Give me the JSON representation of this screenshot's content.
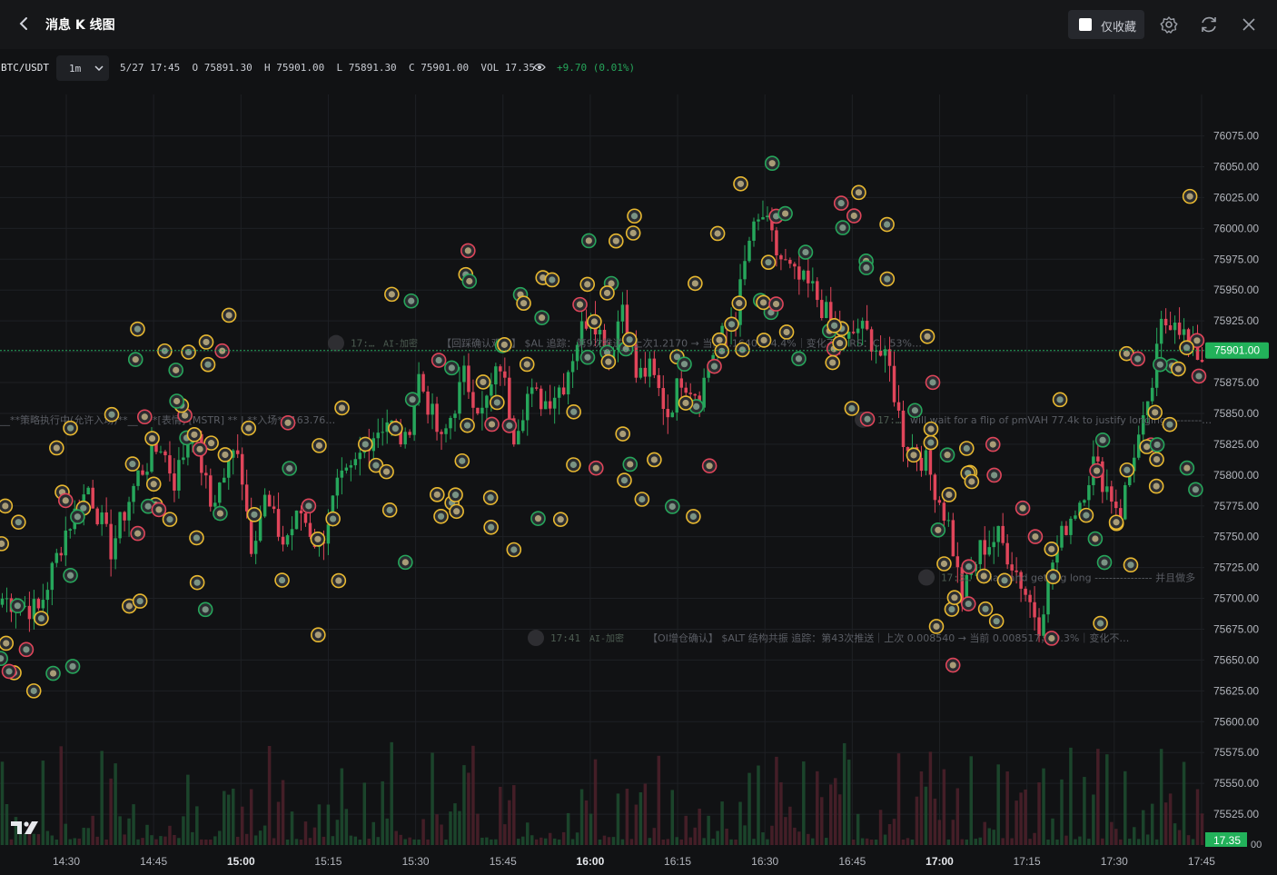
{
  "header": {
    "title": "消息 K 线图",
    "favorites_label": "仅收藏"
  },
  "infobar": {
    "symbol": "BTC/USDT",
    "interval": "1m",
    "datetime": "5/27 17:45",
    "open_label": "O",
    "open": "75891.30",
    "high_label": "H",
    "high": "75901.00",
    "low_label": "L",
    "low": "75891.30",
    "close_label": "C",
    "close": "75901.00",
    "volume_label": "VOL",
    "volume": "17.35",
    "change": "+9.70 (0.01%)"
  },
  "icons": [
    "back-arrow-icon",
    "checkbox-icon",
    "gear-icon",
    "refresh-icon",
    "close-icon",
    "chevron-down-icon",
    "eye-icon",
    "tradingview-logo-icon"
  ],
  "colors": {
    "up": "#26a65b",
    "down": "#e0455a",
    "marker_yellow": "#e8b830",
    "background": "#111214",
    "price_tag": "#22b15a"
  },
  "chart_data": {
    "type": "candlestick",
    "ylim": [
      75500,
      76085
    ],
    "y_ticks": [
      "76075.00",
      "76050.00",
      "76025.00",
      "76000.00",
      "75975.00",
      "75950.00",
      "75925.00",
      "75900.00",
      "75875.00",
      "75850.00",
      "75825.00",
      "75800.00",
      "75775.00",
      "75750.00",
      "75725.00",
      "75700.00",
      "75675.00",
      "75650.00",
      "75625.00",
      "75600.00",
      "75575.00",
      "75550.00",
      "75525.00"
    ],
    "x_ticks": [
      {
        "label": "14:30",
        "bold": false
      },
      {
        "label": "14:45",
        "bold": false
      },
      {
        "label": "15:00",
        "bold": true
      },
      {
        "label": "15:15",
        "bold": false
      },
      {
        "label": "15:30",
        "bold": false
      },
      {
        "label": "15:45",
        "bold": false
      },
      {
        "label": "16:00",
        "bold": true
      },
      {
        "label": "16:15",
        "bold": false
      },
      {
        "label": "16:30",
        "bold": false
      },
      {
        "label": "16:45",
        "bold": false
      },
      {
        "label": "17:00",
        "bold": true
      },
      {
        "label": "17:15",
        "bold": false
      },
      {
        "label": "17:30",
        "bold": false
      },
      {
        "label": "17:45",
        "bold": false
      }
    ],
    "last_price": "75901.00",
    "last_price_value": 75901,
    "last_volume": "17.35",
    "volume_axis_label": "00",
    "keypoints": [
      [
        0,
        75700
      ],
      [
        8,
        75690
      ],
      [
        14,
        75755
      ],
      [
        19,
        75790
      ],
      [
        24,
        75740
      ],
      [
        26,
        75760
      ],
      [
        30,
        75800
      ],
      [
        35,
        75825
      ],
      [
        38,
        75795
      ],
      [
        42,
        75840
      ],
      [
        46,
        75775
      ],
      [
        52,
        75825
      ],
      [
        55,
        75745
      ],
      [
        58,
        75780
      ],
      [
        62,
        75745
      ],
      [
        66,
        75770
      ],
      [
        70,
        75740
      ],
      [
        74,
        75790
      ],
      [
        77,
        75800
      ],
      [
        81,
        75830
      ],
      [
        85,
        75845
      ],
      [
        89,
        75825
      ],
      [
        92,
        75880
      ],
      [
        97,
        75825
      ],
      [
        102,
        75880
      ],
      [
        106,
        75850
      ],
      [
        110,
        75890
      ],
      [
        113,
        75835
      ],
      [
        116,
        75865
      ],
      [
        120,
        75860
      ],
      [
        124,
        75875
      ],
      [
        127,
        75910
      ],
      [
        130,
        75935
      ],
      [
        134,
        75895
      ],
      [
        137,
        75940
      ],
      [
        140,
        75880
      ],
      [
        143,
        75885
      ],
      [
        147,
        75850
      ],
      [
        150,
        75880
      ],
      [
        154,
        75865
      ],
      [
        157,
        75900
      ],
      [
        162,
        75930
      ],
      [
        165,
        75990
      ],
      [
        168,
        76010
      ],
      [
        171,
        75980
      ],
      [
        175,
        75960
      ],
      [
        179,
        75950
      ],
      [
        182,
        75930
      ],
      [
        186,
        75905
      ],
      [
        189,
        75920
      ],
      [
        192,
        75910
      ],
      [
        196,
        75885
      ],
      [
        199,
        75830
      ],
      [
        204,
        75810
      ],
      [
        209,
        75760
      ],
      [
        212,
        75700
      ],
      [
        216,
        75740
      ],
      [
        220,
        75750
      ],
      [
        223,
        75730
      ],
      [
        226,
        75705
      ],
      [
        229,
        75680
      ],
      [
        232,
        75730
      ],
      [
        235,
        75760
      ],
      [
        238,
        75780
      ],
      [
        241,
        75810
      ],
      [
        244,
        75790
      ],
      [
        247,
        75770
      ],
      [
        250,
        75820
      ],
      [
        253,
        75850
      ],
      [
        256,
        75920
      ],
      [
        259,
        75930
      ],
      [
        262,
        75905
      ],
      [
        265,
        75895
      ]
    ],
    "markers_note": "event news markers shown as circles",
    "annotations": [
      {
        "time": "17:…",
        "source": "AI-加密",
        "text": "【回踩确认观察】 $AL 追踪：第9次推送｜上次1.2170 → 当前1.1640，-4.4%｜变化不大 RS：C｜53%…"
      },
      {
        "time": "",
        "source": "",
        "text": "__**策略执行中(允许入场)**__ - **[表情]  [MSTR]  ** | **入场** 163.76…"
      },
      {
        "time": "17:…",
        "source": "",
        "text": "will wait for a flip of pmVAH 77.4k to justify longing ---------…"
      },
      {
        "time": "17:3…",
        "source": "",
        "text": "…ia…and getting long ---------------- 并且做多"
      },
      {
        "time": "17:41",
        "source": "AI-加密",
        "text": "【OI增仓确认】 $ALT 结构共振 追踪：第43次推送｜上次 0.008540 → 当前 0.008517，-0.3%｜变化不…"
      }
    ]
  }
}
